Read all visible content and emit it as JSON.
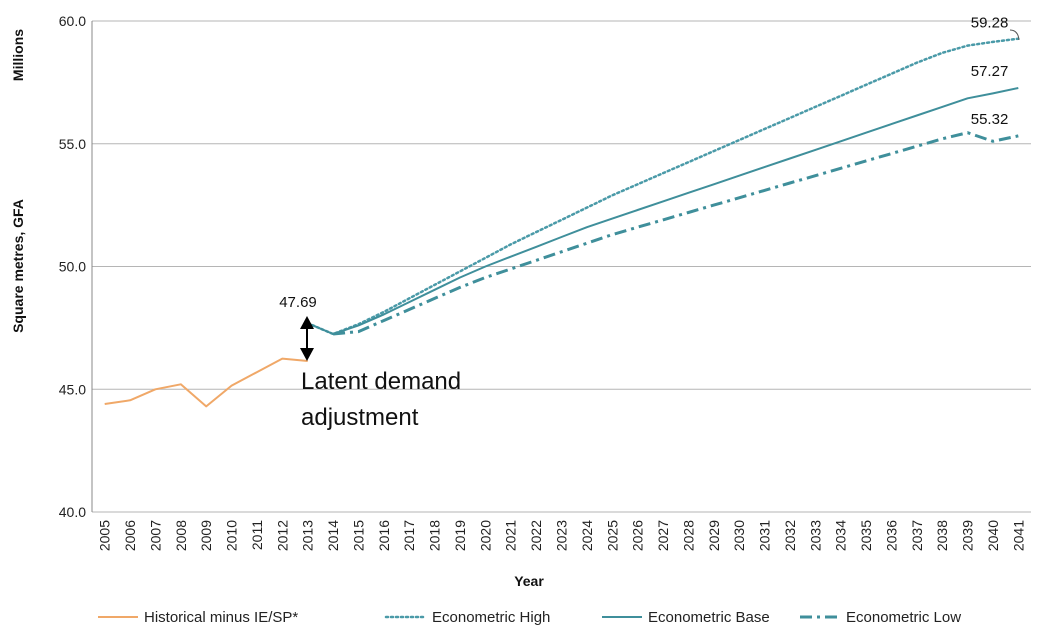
{
  "chart_data": {
    "type": "line",
    "title": "",
    "xlabel": "Year",
    "ylabel": "Square metres, GFA",
    "yunit_label": "Millions",
    "ylim": [
      40.0,
      60.0
    ],
    "yticks": [
      "40.0",
      "45.0",
      "50.0",
      "55.0",
      "60.0"
    ],
    "grid": true,
    "legend_position": "bottom",
    "categories": [
      "2005",
      "2006",
      "2007",
      "2008",
      "2009",
      "2010",
      "2011",
      "2012",
      "2013",
      "2014",
      "2015",
      "2016",
      "2017",
      "2018",
      "2019",
      "2020",
      "2021",
      "2022",
      "2023",
      "2024",
      "2025",
      "2026",
      "2027",
      "2028",
      "2029",
      "2030",
      "2031",
      "2032",
      "2033",
      "2034",
      "2035",
      "2036",
      "2037",
      "2038",
      "2039",
      "2040",
      "2041"
    ],
    "series": [
      {
        "name": "Historical minus IE/SP*",
        "style": "solid",
        "color": "#F0A868",
        "x": [
          "2005",
          "2006",
          "2007",
          "2008",
          "2009",
          "2010",
          "2011",
          "2012",
          "2013"
        ],
        "values": [
          44.4,
          44.55,
          45.0,
          45.2,
          44.3,
          45.15,
          45.7,
          46.25,
          46.15
        ]
      },
      {
        "name": "Econometric High",
        "style": "dotted",
        "color": "#4A9AA8",
        "x": [
          "2013",
          "2014",
          "2015",
          "2016",
          "2017",
          "2018",
          "2019",
          "2020",
          "2021",
          "2022",
          "2023",
          "2024",
          "2025",
          "2026",
          "2027",
          "2028",
          "2029",
          "2030",
          "2031",
          "2032",
          "2033",
          "2034",
          "2035",
          "2036",
          "2037",
          "2038",
          "2039",
          "2040",
          "2041"
        ],
        "values": [
          47.69,
          47.25,
          47.65,
          48.15,
          48.7,
          49.25,
          49.8,
          50.35,
          50.9,
          51.4,
          51.9,
          52.4,
          52.9,
          53.35,
          53.8,
          54.25,
          54.7,
          55.15,
          55.6,
          56.05,
          56.5,
          56.95,
          57.4,
          57.85,
          58.3,
          58.7,
          59.0,
          59.15,
          59.28
        ]
      },
      {
        "name": "Econometric Base",
        "style": "solid",
        "color": "#3F8F9B",
        "x": [
          "2013",
          "2014",
          "2015",
          "2016",
          "2017",
          "2018",
          "2019",
          "2020",
          "2021",
          "2022",
          "2023",
          "2024",
          "2025",
          "2026",
          "2027",
          "2028",
          "2029",
          "2030",
          "2031",
          "2032",
          "2033",
          "2034",
          "2035",
          "2036",
          "2037",
          "2038",
          "2039",
          "2040",
          "2041"
        ],
        "values": [
          47.69,
          47.25,
          47.6,
          48.05,
          48.55,
          49.05,
          49.55,
          50.0,
          50.4,
          50.8,
          51.2,
          51.6,
          51.95,
          52.3,
          52.65,
          53.0,
          53.35,
          53.7,
          54.05,
          54.4,
          54.75,
          55.1,
          55.45,
          55.8,
          56.15,
          56.5,
          56.85,
          57.05,
          57.27
        ]
      },
      {
        "name": "Econometric Low",
        "style": "dashdot",
        "color": "#3F8F9B",
        "x": [
          "2014",
          "2015",
          "2016",
          "2017",
          "2018",
          "2019",
          "2020",
          "2021",
          "2022",
          "2023",
          "2024",
          "2025",
          "2026",
          "2027",
          "2028",
          "2029",
          "2030",
          "2031",
          "2032",
          "2033",
          "2034",
          "2035",
          "2036",
          "2037",
          "2038",
          "2039",
          "2040",
          "2041"
        ],
        "values": [
          47.25,
          47.35,
          47.8,
          48.25,
          48.7,
          49.15,
          49.55,
          49.9,
          50.25,
          50.6,
          50.95,
          51.3,
          51.6,
          51.9,
          52.2,
          52.5,
          52.8,
          53.1,
          53.4,
          53.7,
          54.0,
          54.3,
          54.6,
          54.9,
          55.2,
          55.45,
          55.1,
          55.32
        ]
      }
    ],
    "data_labels": [
      {
        "text": "59.28",
        "series": "Econometric High",
        "x": "2041"
      },
      {
        "text": "57.27",
        "series": "Econometric Base",
        "x": "2041"
      },
      {
        "text": "55.32",
        "series": "Econometric Low",
        "x": "2041"
      },
      {
        "text": "47.69",
        "series": "Econometric Base",
        "x": "2013"
      }
    ],
    "annotation": {
      "line1": "Latent demand",
      "line2": "adjustment"
    }
  }
}
